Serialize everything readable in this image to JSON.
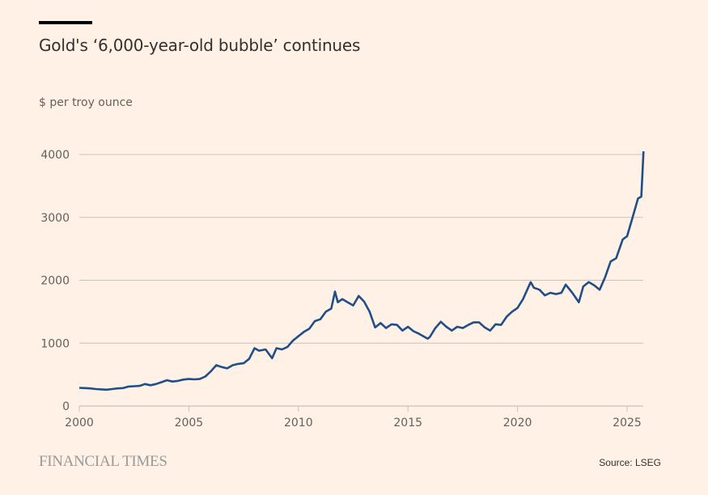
{
  "header": {
    "title": "Gold's ‘6,000-year-old bubble’ continues",
    "subtitle": "$ per troy ounce"
  },
  "footer": {
    "brand": "FINANCIAL TIMES",
    "source": "Source: LSEG"
  },
  "colors": {
    "background": "#fff1e5",
    "line": "#1f4e89",
    "grid": "#ccc1b7",
    "text": "#66605c"
  },
  "chart_data": {
    "type": "line",
    "title": "Gold's ‘6,000-year-old bubble’ continues",
    "ylabel": "$ per troy ounce",
    "xlabel": "",
    "xlim": [
      2000,
      2025.75
    ],
    "ylim": [
      0,
      4000
    ],
    "yticks": [
      0,
      1000,
      2000,
      3000,
      4000
    ],
    "xticks": [
      2000,
      2005,
      2010,
      2015,
      2020,
      2025
    ],
    "grid": true,
    "legend": "none",
    "series": [
      {
        "name": "Gold price",
        "x": [
          2000,
          2000.25,
          2000.5,
          2000.75,
          2001,
          2001.25,
          2001.5,
          2001.75,
          2002,
          2002.25,
          2002.5,
          2002.75,
          2003,
          2003.25,
          2003.5,
          2003.75,
          2004,
          2004.25,
          2004.5,
          2004.75,
          2005,
          2005.25,
          2005.5,
          2005.75,
          2006,
          2006.25,
          2006.5,
          2006.75,
          2007,
          2007.25,
          2007.5,
          2007.75,
          2008,
          2008.2,
          2008.5,
          2008.8,
          2009,
          2009.25,
          2009.5,
          2009.75,
          2010,
          2010.25,
          2010.5,
          2010.75,
          2011,
          2011.25,
          2011.5,
          2011.67,
          2011.8,
          2012,
          2012.25,
          2012.5,
          2012.75,
          2013,
          2013.25,
          2013.5,
          2013.75,
          2014,
          2014.25,
          2014.5,
          2014.75,
          2015,
          2015.25,
          2015.5,
          2015.9,
          2016,
          2016.25,
          2016.5,
          2016.75,
          2017,
          2017.25,
          2017.5,
          2017.75,
          2018,
          2018.25,
          2018.5,
          2018.75,
          2019,
          2019.25,
          2019.5,
          2019.75,
          2020,
          2020.25,
          2020.6,
          2020.75,
          2021,
          2021.25,
          2021.5,
          2021.75,
          2022,
          2022.2,
          2022.5,
          2022.8,
          2023,
          2023.25,
          2023.5,
          2023.75,
          2024,
          2024.25,
          2024.5,
          2024.8,
          2025,
          2025.25,
          2025.5,
          2025.65,
          2025.75
        ],
        "values": [
          290,
          285,
          280,
          270,
          265,
          260,
          270,
          280,
          285,
          310,
          315,
          320,
          350,
          330,
          350,
          380,
          410,
          390,
          400,
          420,
          430,
          425,
          430,
          470,
          550,
          650,
          620,
          600,
          650,
          670,
          680,
          750,
          920,
          880,
          900,
          760,
          920,
          900,
          940,
          1040,
          1110,
          1180,
          1230,
          1350,
          1380,
          1500,
          1550,
          1820,
          1650,
          1700,
          1650,
          1600,
          1750,
          1660,
          1500,
          1250,
          1320,
          1240,
          1300,
          1290,
          1200,
          1260,
          1190,
          1150,
          1070,
          1100,
          1240,
          1340,
          1260,
          1200,
          1260,
          1240,
          1290,
          1330,
          1330,
          1250,
          1200,
          1300,
          1290,
          1420,
          1500,
          1560,
          1700,
          1970,
          1880,
          1850,
          1760,
          1800,
          1780,
          1800,
          1930,
          1800,
          1650,
          1900,
          1970,
          1920,
          1850,
          2050,
          2300,
          2350,
          2650,
          2700,
          3000,
          3300,
          3330,
          4050
        ]
      }
    ]
  }
}
